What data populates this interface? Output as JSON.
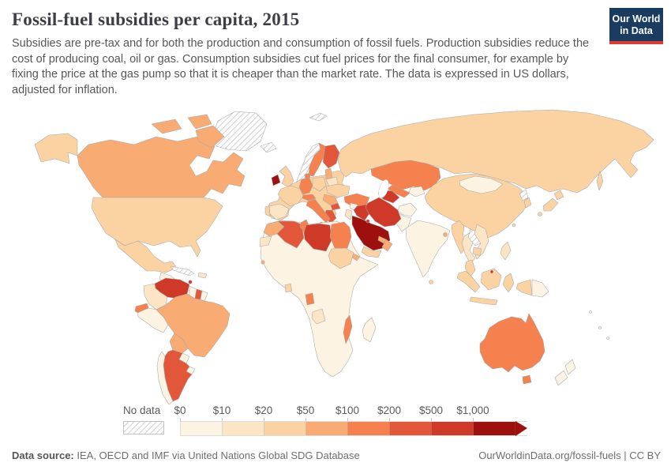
{
  "header": {
    "title": "Fossil-fuel subsidies per capita, 2015",
    "subtitle": "Subsidies are pre-tax and for both the production and consumption of fossil fuels. Production subsidies reduce the cost of producing coal, oil or gas. Consumption subsidies cut fuel prices for the final consumer, for example by fixing the price at the gas pump so that it is cheaper than the market rate. The data is expressed in US dollars, adjusted for inflation."
  },
  "logo": {
    "line1": "Our World",
    "line2": "in Data",
    "bg_color": "#1a3c61",
    "stripe_color": "#e0392e"
  },
  "legend": {
    "no_data_label": "No data",
    "tick_labels": [
      "$0",
      "$10",
      "$20",
      "$50",
      "$100",
      "$200",
      "$500",
      "$1,000"
    ],
    "segment_colors": [
      "#fdf3e3",
      "#fce5c4",
      "#fbd3a2",
      "#f8ab72",
      "#f4814e",
      "#e2573a",
      "#cf3928",
      "#9e100e"
    ]
  },
  "footer": {
    "source_label": "Data source:",
    "source_value": "IEA, OECD and IMF via United Nations Global SDG Database",
    "link_text": "OurWorldinData.org/fossil-fuels | CC BY"
  },
  "chart_data": {
    "type": "choropleth_map",
    "title": "Fossil-fuel subsidies per capita, 2015",
    "value_unit": "US$ per capita",
    "bins": [
      "$0-10",
      "$10-20",
      "$20-50",
      "$50-100",
      "$100-200",
      "$200-500",
      "$500-1,000",
      "$1,000+",
      "No data"
    ],
    "bin_colors": {
      "$0-10": "#fdf3e3",
      "$10-20": "#fce5c4",
      "$20-50": "#fbd3a2",
      "$50-100": "#f8ab72",
      "$100-200": "#f4814e",
      "$200-500": "#e2573a",
      "$500-1,000": "#cf3928",
      "$1,000+": "#9e100e"
    },
    "regions": {
      "greenland": {
        "label": "Greenland",
        "bin": "No data"
      },
      "canada": {
        "label": "Canada",
        "bin": "$50-100"
      },
      "alaska": {
        "label": "United States (Alaska)",
        "bin": "$20-50"
      },
      "usa": {
        "label": "United States",
        "bin": "$20-50"
      },
      "mexico": {
        "label": "Mexico",
        "bin": "$20-50"
      },
      "central-america": {
        "label": "Central America",
        "bin": "$0-10"
      },
      "cuba": {
        "label": "Cuba",
        "bin": "No data"
      },
      "hispaniola": {
        "label": "Haiti / Dominican Republic",
        "bin": "$10-20"
      },
      "trinidad-tobago": {
        "label": "Trinidad and Tobago",
        "bin": "$500-1,000"
      },
      "venezuela": {
        "label": "Venezuela",
        "bin": "$500-1,000"
      },
      "colombia": {
        "label": "Colombia",
        "bin": "$10-20"
      },
      "guyana": {
        "label": "Guyana",
        "bin": "$0-10"
      },
      "suriname": {
        "label": "Suriname",
        "bin": "$200-500"
      },
      "french-guiana": {
        "label": "French Guiana",
        "bin": "$0-10"
      },
      "ecuador": {
        "label": "Ecuador",
        "bin": "$100-200"
      },
      "peru": {
        "label": "Peru",
        "bin": "$0-10"
      },
      "brazil": {
        "label": "Brazil",
        "bin": "$50-100"
      },
      "bolivia": {
        "label": "Bolivia",
        "bin": "$50-100"
      },
      "paraguay": {
        "label": "Paraguay",
        "bin": "$0-10"
      },
      "uruguay": {
        "label": "Uruguay",
        "bin": "$0-10"
      },
      "argentina": {
        "label": "Argentina",
        "bin": "$200-500"
      },
      "chile": {
        "label": "Chile",
        "bin": "$0-10"
      },
      "iceland": {
        "label": "Iceland",
        "bin": "No data"
      },
      "svalbard": {
        "label": "Svalbard",
        "bin": "No data"
      },
      "norway": {
        "label": "Norway",
        "bin": "No data"
      },
      "sweden": {
        "label": "Sweden",
        "bin": "$100-200"
      },
      "finland": {
        "label": "Finland",
        "bin": "$200-500"
      },
      "denmark": {
        "label": "Denmark",
        "bin": "$100-200"
      },
      "united-kingdom": {
        "label": "United Kingdom",
        "bin": "$20-50"
      },
      "ireland": {
        "label": "Ireland",
        "bin": "$1,000+"
      },
      "europe-other": {
        "label": "Other Europe",
        "bin": "$20-50"
      },
      "france": {
        "label": "France",
        "bin": "$20-50"
      },
      "spain": {
        "label": "Spain",
        "bin": "$10-20"
      },
      "portugal": {
        "label": "Portugal",
        "bin": "$20-50"
      },
      "germany": {
        "label": "Germany",
        "bin": "$100-200"
      },
      "switzerland-austria": {
        "label": "Switzerland / Austria",
        "bin": "$100-200"
      },
      "italy": {
        "label": "Italy",
        "bin": "$100-200"
      },
      "poland": {
        "label": "Poland",
        "bin": "$20-50"
      },
      "baltic-states": {
        "label": "Baltic states",
        "bin": "$50-100"
      },
      "belarus": {
        "label": "Belarus",
        "bin": "$10-20"
      },
      "ukraine": {
        "label": "Ukraine",
        "bin": "$20-50"
      },
      "romania": {
        "label": "Romania",
        "bin": "$50-100"
      },
      "bulgaria": {
        "label": "Bulgaria",
        "bin": "$200-500"
      },
      "greece": {
        "label": "Greece",
        "bin": "$200-500"
      },
      "russia": {
        "label": "Russia",
        "bin": "$20-50"
      },
      "kazakhstan": {
        "label": "Kazakhstan",
        "bin": "$100-200"
      },
      "uzbekistan": {
        "label": "Uzbekistan",
        "bin": "$100-200"
      },
      "turkmenistan": {
        "label": "Turkmenistan",
        "bin": "$500-1,000"
      },
      "kyrgyzstan-tajikistan": {
        "label": "Kyrgyzstan / Tajikistan",
        "bin": "$0-10"
      },
      "mongolia": {
        "label": "Mongolia",
        "bin": "$0-10"
      },
      "china": {
        "label": "China",
        "bin": "$20-50"
      },
      "north-korea": {
        "label": "North Korea",
        "bin": "No data"
      },
      "south-korea": {
        "label": "South Korea",
        "bin": "$20-50"
      },
      "japan": {
        "label": "Japan",
        "bin": "$20-50"
      },
      "taiwan": {
        "label": "Taiwan",
        "bin": "$20-50"
      },
      "afghanistan": {
        "label": "Afghanistan",
        "bin": "$0-10"
      },
      "pakistan": {
        "label": "Pakistan",
        "bin": "$0-10"
      },
      "india": {
        "label": "India",
        "bin": "$0-10"
      },
      "sri-lanka": {
        "label": "Sri Lanka",
        "bin": "$20-50"
      },
      "bangladesh": {
        "label": "Bangladesh",
        "bin": "$50-100"
      },
      "myanmar": {
        "label": "Myanmar",
        "bin": "$20-50"
      },
      "thailand": {
        "label": "Thailand",
        "bin": "$10-20"
      },
      "laos": {
        "label": "Laos",
        "bin": "No data"
      },
      "vietnam": {
        "label": "Vietnam",
        "bin": "$10-20"
      },
      "cambodia": {
        "label": "Cambodia",
        "bin": "$20-50"
      },
      "malaysia": {
        "label": "Malaysia",
        "bin": "$20-50"
      },
      "indonesia": {
        "label": "Indonesia",
        "bin": "$20-50"
      },
      "brunei": {
        "label": "Brunei",
        "bin": "$500-1,000"
      },
      "philippines": {
        "label": "Philippines",
        "bin": "$10-20"
      },
      "papua-new-guinea": {
        "label": "Papua New Guinea",
        "bin": "$0-10"
      },
      "australia": {
        "label": "Australia",
        "bin": "$100-200"
      },
      "new-zealand": {
        "label": "New Zealand",
        "bin": "$0-10"
      },
      "pacific-islands": {
        "label": "Pacific islands",
        "bin": "$0-10"
      },
      "turkey": {
        "label": "Turkey",
        "bin": "$100-200"
      },
      "syria": {
        "label": "Syria",
        "bin": "$0-10"
      },
      "jordan-israel": {
        "label": "Jordan / Israel",
        "bin": "$10-20"
      },
      "iraq": {
        "label": "Iraq",
        "bin": "$500-1,000"
      },
      "iran": {
        "label": "Iran",
        "bin": "$500-1,000"
      },
      "saudi-arabia": {
        "label": "Saudi Arabia",
        "bin": "$1,000+"
      },
      "kuwait": {
        "label": "Kuwait",
        "bin": "$500-1,000"
      },
      "uae-qatar": {
        "label": "United Arab Emirates / Qatar",
        "bin": "$50-100"
      },
      "oman": {
        "label": "Oman",
        "bin": "$50-100"
      },
      "yemen": {
        "label": "Yemen",
        "bin": "$20-50"
      },
      "morocco": {
        "label": "Morocco",
        "bin": "$50-100"
      },
      "western-sahara": {
        "label": "Western Sahara",
        "bin": "$10-20"
      },
      "algeria": {
        "label": "Algeria",
        "bin": "$200-500"
      },
      "tunisia": {
        "label": "Tunisia",
        "bin": "$100-200"
      },
      "libya": {
        "label": "Libya",
        "bin": "$500-1,000"
      },
      "egypt": {
        "label": "Egypt",
        "bin": "$100-200"
      },
      "sudan": {
        "label": "Sudan",
        "bin": "$20-50"
      },
      "eritrea-djibouti": {
        "label": "Eritrea / Djibouti",
        "bin": "$50-100"
      },
      "senegal": {
        "label": "Senegal",
        "bin": "$50-100"
      },
      "ghana": {
        "label": "Ghana",
        "bin": "$20-50"
      },
      "gabon": {
        "label": "Gabon",
        "bin": "$100-200"
      },
      "angola": {
        "label": "Angola",
        "bin": "$10-20"
      },
      "mozambique": {
        "label": "Mozambique",
        "bin": "$100-200"
      },
      "madagascar": {
        "label": "Madagascar",
        "bin": "$0-10"
      },
      "africa-other": {
        "label": "Other Africa",
        "bin": "$0-10"
      }
    }
  }
}
